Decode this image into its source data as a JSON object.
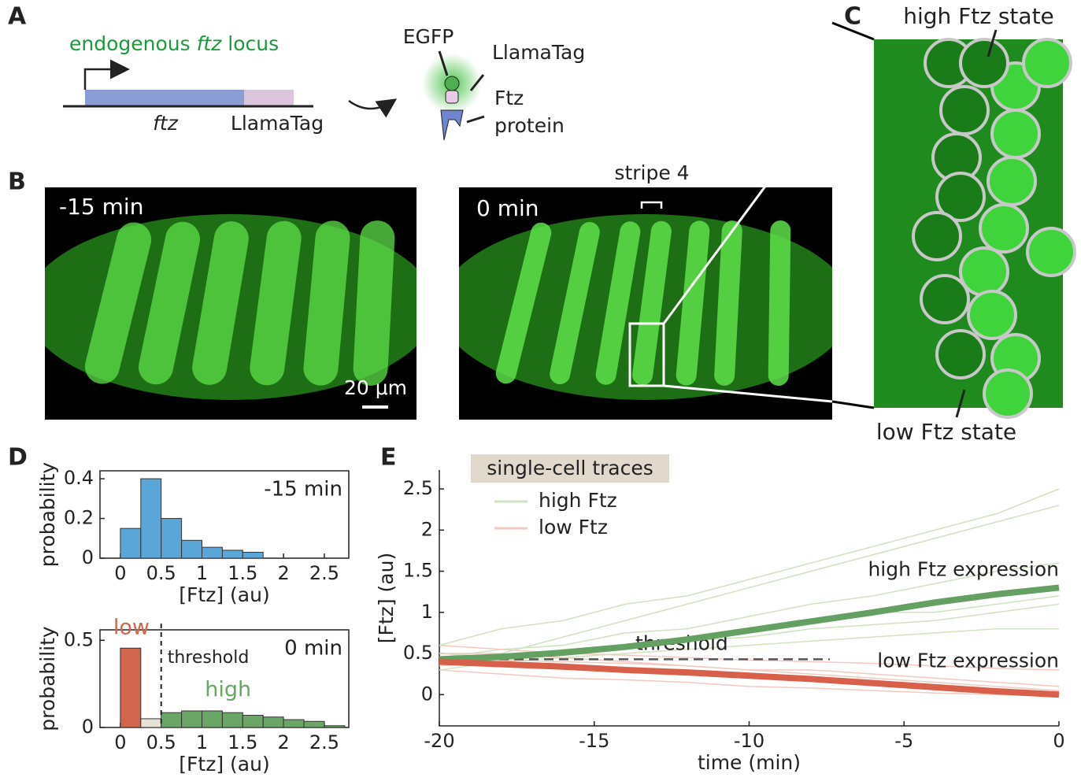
{
  "panel_a": {
    "label": "A",
    "locus_title": {
      "before": "endogenous",
      "gene": "ftz",
      "after": "locus"
    },
    "gene_label": "ftz",
    "tag_label": "LlamaTag",
    "egfp": "EGFP",
    "llamatag": "LlamaTag",
    "protein": [
      "Ftz",
      "protein"
    ]
  },
  "panel_b": {
    "label": "B",
    "left_time": "-15 min",
    "right_time": "0 min",
    "stripe": "stripe 4",
    "scale_bar": "20 μm"
  },
  "panel_c": {
    "label": "C",
    "high": "high Ftz state",
    "low": "low Ftz state"
  },
  "panel_d": {
    "label": "D"
  },
  "panel_e": {
    "label": "E"
  },
  "chart_data": [
    {
      "type": "histogram",
      "title": "-15 min",
      "xlabel": "[Ftz] (au)",
      "ylabel": "probability",
      "series": [
        {
          "color": "#5aa6d9",
          "bins": [
            0,
            0.25,
            0.5,
            0.75,
            1,
            1.25,
            1.5,
            1.75
          ],
          "values": [
            0.15,
            0.4,
            0.2,
            0.09,
            0.055,
            0.04,
            0.03
          ]
        }
      ],
      "xlim": [
        -0.25,
        2.8
      ],
      "ylim": [
        0,
        0.44
      ],
      "xticks": [
        0,
        0.5,
        1,
        1.5,
        2,
        2.5
      ],
      "yticks": [
        0,
        0.2,
        0.4
      ],
      "box": true
    },
    {
      "type": "histogram",
      "title": "0 min",
      "xlabel": "[Ftz] (au)",
      "ylabel": "probability",
      "series": [
        {
          "name": "low",
          "color": "#d2654d",
          "bins": [
            0,
            0.25
          ],
          "values": [
            0.455
          ]
        },
        {
          "color": "#e8e2d6",
          "bins": [
            0.25,
            0.5
          ],
          "values": [
            0.05
          ]
        },
        {
          "name": "high",
          "color": "#6aa665",
          "bins": [
            0.5,
            0.75,
            1,
            1.25,
            1.5,
            1.75,
            2,
            2.25,
            2.5,
            2.75
          ],
          "values": [
            0.085,
            0.095,
            0.095,
            0.085,
            0.07,
            0.06,
            0.045,
            0.035,
            0.01
          ]
        }
      ],
      "threshold": {
        "value": 0.5,
        "label": "threshold"
      },
      "xlim": [
        -0.25,
        2.8
      ],
      "ylim": [
        0,
        0.56
      ],
      "xticks": [
        0,
        0.5,
        1,
        1.5,
        2,
        2.5
      ],
      "yticks": [
        0,
        0.5
      ],
      "box": true
    },
    {
      "type": "line",
      "xlabel": "time (min)",
      "ylabel": "[Ftz] (au)",
      "legend_title": "single-cell traces",
      "x": [
        -20,
        -18,
        -16,
        -14,
        -12,
        -10,
        -8,
        -6,
        -4,
        -2,
        0
      ],
      "series": [
        {
          "name": "high Ftz",
          "color": "#cfe3bf",
          "traces": [
            [
              0.45,
              0.55,
              0.6,
              0.75,
              0.8,
              0.95,
              1.1,
              1.2,
              1.35,
              1.5,
              1.6
            ],
            [
              0.4,
              0.5,
              0.7,
              0.9,
              1.1,
              1.3,
              1.5,
              1.7,
              1.9,
              2.1,
              2.3
            ],
            [
              0.5,
              0.45,
              0.55,
              0.6,
              0.65,
              0.7,
              0.8,
              0.85,
              0.9,
              1.0,
              1.1
            ],
            [
              0.3,
              0.4,
              0.5,
              0.55,
              0.7,
              0.75,
              0.9,
              1.0,
              1.0,
              1.1,
              1.2
            ],
            [
              0.6,
              0.8,
              0.9,
              1.1,
              1.2,
              1.4,
              1.6,
              1.8,
              2.0,
              2.2,
              2.5
            ],
            [
              0.35,
              0.4,
              0.45,
              0.5,
              0.55,
              0.6,
              0.65,
              0.7,
              0.75,
              0.8,
              0.8
            ]
          ]
        },
        {
          "name": "low Ftz",
          "color": "#f2c9bf",
          "traces": [
            [
              0.45,
              0.42,
              0.4,
              0.38,
              0.35,
              0.3,
              0.25,
              0.2,
              0.15,
              0.1,
              0.05
            ],
            [
              0.6,
              0.55,
              0.5,
              0.48,
              0.45,
              0.42,
              0.4,
              0.38,
              0.35,
              0.32,
              0.3
            ],
            [
              0.3,
              0.25,
              0.2,
              0.18,
              0.15,
              0.1,
              0.08,
              0.05,
              0.02,
              0,
              -0.02
            ],
            [
              0.5,
              0.5,
              0.45,
              0.4,
              0.35,
              0.3,
              0.3,
              0.25,
              0.2,
              0.15,
              0.1
            ]
          ]
        },
        {
          "name": "high Ftz expression",
          "color": "#64a061",
          "values": [
            0.43,
            0.46,
            0.51,
            0.58,
            0.67,
            0.78,
            0.89,
            1.0,
            1.12,
            1.22,
            1.3
          ]
        },
        {
          "name": "low Ftz expression",
          "color": "#d8604a",
          "values": [
            0.4,
            0.37,
            0.34,
            0.3,
            0.27,
            0.23,
            0.19,
            0.14,
            0.09,
            0.04,
            0.0
          ]
        }
      ],
      "threshold": {
        "value": 0.43,
        "x": [
          -20,
          -7.4
        ],
        "label": "threshold"
      },
      "xlim": [
        -20,
        0
      ],
      "ylim": [
        -0.38,
        2.73
      ],
      "xticks": [
        -20,
        -15,
        -10,
        -5,
        0
      ],
      "yticks": [
        0,
        0.5,
        1,
        1.5,
        2,
        2.5
      ],
      "box": false
    }
  ]
}
